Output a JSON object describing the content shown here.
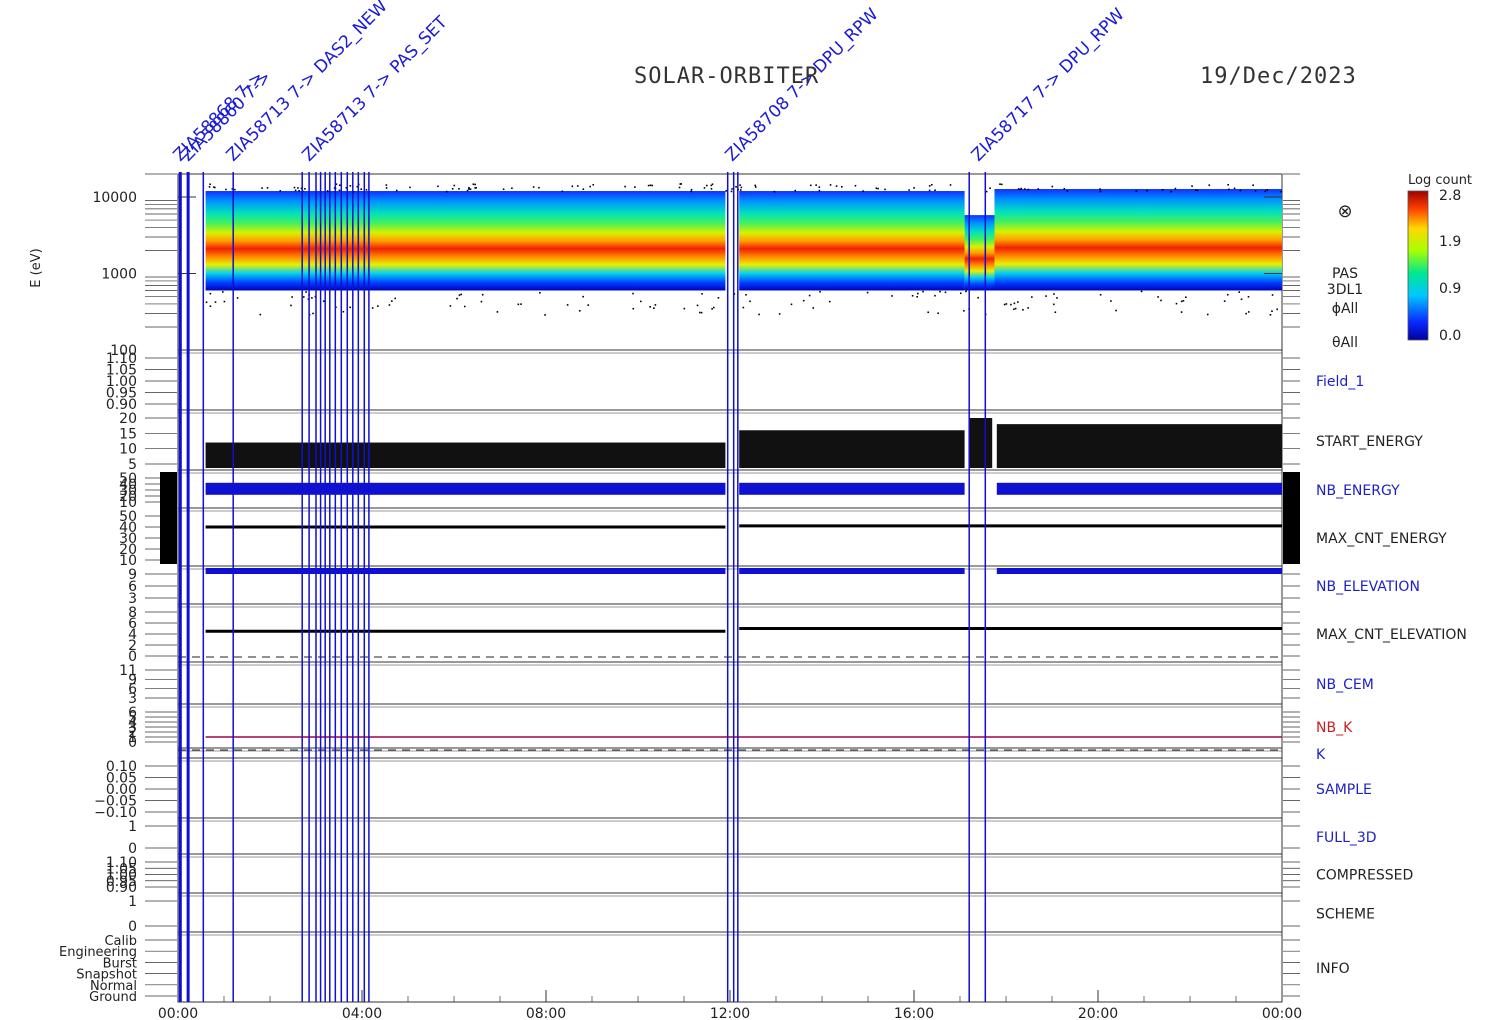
{
  "header": {
    "title": "SOLAR-ORBITER",
    "date": "19/Dec/2023"
  },
  "colorbar": {
    "title": "Log count",
    "ticks": [
      "2.8",
      "1.9",
      "0.9",
      "0.0"
    ]
  },
  "chart_data": {
    "type": "heatmap",
    "x_ticks": [
      "00:00",
      "04:00",
      "08:00",
      "12:00",
      "16:00",
      "20:00",
      "00:00"
    ],
    "x_range_hours": [
      0,
      24
    ],
    "symbol": "⊗",
    "spectrogram": {
      "ylabel": "E (eV)",
      "y_ticks": [
        "10000",
        "1000",
        "100"
      ],
      "ylim": [
        100,
        20000
      ],
      "scale": "log",
      "labels": [
        "PAS",
        "3DL1",
        "ϕAll",
        "θAll"
      ],
      "peak_energy_eV": 1800,
      "colorbar_range": [
        0.0,
        2.8
      ]
    },
    "panels": [
      {
        "name": "Field_1",
        "ticks": [
          "1.10",
          "1.05",
          "1.00",
          "0.95",
          "0.90"
        ],
        "color": "#2020c8"
      },
      {
        "name": "START_ENERGY",
        "ticks": [
          "20",
          "15",
          "10",
          "5"
        ],
        "color": "#222222"
      },
      {
        "name": "NB_ENERGY",
        "ticks": [
          "50",
          "40",
          "30",
          "20",
          "10"
        ],
        "color": "#2020c8"
      },
      {
        "name": "MAX_CNT_ENERGY",
        "ticks": [
          "50",
          "40",
          "30",
          "20",
          "10"
        ],
        "color": "#222222"
      },
      {
        "name": "NB_ELEVATION",
        "ticks": [
          "9",
          "6",
          "3"
        ],
        "color": "#2020c8"
      },
      {
        "name": "MAX_CNT_ELEVATION",
        "ticks": [
          "8",
          "6",
          "4",
          "2",
          "0"
        ],
        "color": "#222222"
      },
      {
        "name": "NB_CEM",
        "ticks": [
          "11",
          "9",
          "6",
          "3"
        ],
        "color": "#2020c8"
      },
      {
        "name": "NB_K",
        "ticks": [
          "6",
          "5",
          "4",
          "3",
          "2",
          "1",
          "0"
        ],
        "color": "#c82020"
      },
      {
        "name": "K",
        "ticks": [],
        "color": "#2020c8"
      },
      {
        "name": "SAMPLE",
        "ticks": [
          "0.10",
          "0.05",
          "0.00",
          "−0.05",
          "−0.10"
        ],
        "color": "#2020c8"
      },
      {
        "name": "FULL_3D",
        "ticks": [
          "1",
          "0"
        ],
        "color": "#2020c8"
      },
      {
        "name": "COMPRESSED",
        "ticks": [
          "1.10",
          "1.05",
          "1.00",
          "0.95",
          "0.90"
        ],
        "color": "#222222"
      },
      {
        "name": "SCHEME",
        "ticks": [
          "1",
          "0"
        ],
        "color": "#222222"
      },
      {
        "name": "INFO",
        "ticks": [
          "Calib",
          "Engineering",
          "Burst",
          "Snapshot",
          "Normal",
          "Ground"
        ],
        "color": "#222222"
      }
    ],
    "series": [
      {
        "name": "START_ENERGY",
        "segments": [
          {
            "t0": 0.6,
            "t1": 11.9,
            "value": 12
          },
          {
            "t0": 12.2,
            "t1": 17.1,
            "value": 16
          },
          {
            "t0": 17.2,
            "t1": 17.7,
            "value": 20
          },
          {
            "t0": 17.8,
            "t1": 24.0,
            "value": 18
          }
        ]
      },
      {
        "name": "NB_ENERGY",
        "segments": [
          {
            "t0": 0.6,
            "t1": 11.9,
            "value": 32
          },
          {
            "t0": 12.2,
            "t1": 17.1,
            "value": 32
          },
          {
            "t0": 17.8,
            "t1": 24.0,
            "value": 32
          }
        ]
      },
      {
        "name": "MAX_CNT_ENERGY",
        "segments": [
          {
            "t0": 0.6,
            "t1": 11.9,
            "value": 40
          },
          {
            "t0": 12.2,
            "t1": 24.0,
            "value": 41
          }
        ]
      },
      {
        "name": "NB_ELEVATION",
        "segments": [
          {
            "t0": 0.6,
            "t1": 11.9,
            "value": 9
          },
          {
            "t0": 12.2,
            "t1": 17.1,
            "value": 9
          },
          {
            "t0": 17.8,
            "t1": 24.0,
            "value": 9
          }
        ]
      },
      {
        "name": "MAX_CNT_ELEVATION",
        "segments": [
          {
            "t0": 0.6,
            "t1": 11.9,
            "value": 4.5
          },
          {
            "t0": 12.2,
            "t1": 24.0,
            "value": 5
          }
        ]
      },
      {
        "name": "NB_K",
        "segments": [
          {
            "t0": 0.6,
            "t1": 24.0,
            "value": 1
          }
        ]
      }
    ],
    "event_times_hours": [
      0.05,
      0.22,
      0.55,
      1.2,
      2.7,
      2.85,
      3.0,
      3.1,
      3.2,
      3.3,
      3.42,
      3.55,
      3.68,
      3.8,
      3.92,
      4.05,
      4.15,
      11.95,
      12.08,
      12.17,
      17.2,
      17.55
    ],
    "event_annotations": [
      {
        "text": "ZIA58868 7->",
        "time": 0.05
      },
      {
        "text": "ZIA58860 7->",
        "time": 0.22
      },
      {
        "text": "ZIA58713 7-> DAS2_NEW",
        "time": 1.2
      },
      {
        "text": "ZIA58713 7-> PAS_SET",
        "time": 2.85
      },
      {
        "text": "ZIA58708 7-> DPU_RPW",
        "time": 12.05
      },
      {
        "text": "ZIA58717 7-> DPU_RPW",
        "time": 17.4
      }
    ]
  }
}
